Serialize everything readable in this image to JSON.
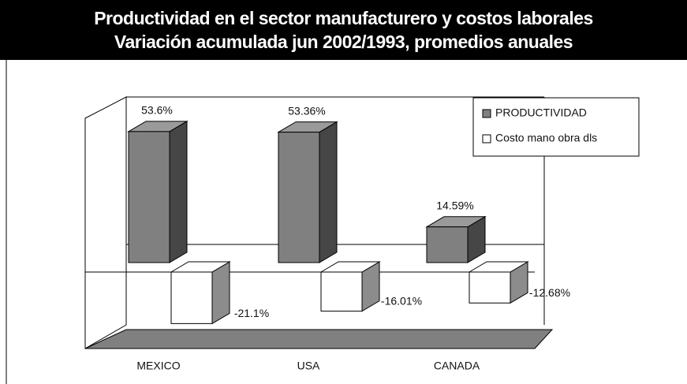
{
  "chart_data": {
    "type": "bar3d",
    "title": "Productividad en el sector manufacturero y costos laborales",
    "subtitle": "Variación acumulada jun 2002/1993, promedios anuales",
    "categories": [
      "MEXICO",
      "USA",
      "CANADA"
    ],
    "series": [
      {
        "name": "PRODUCTIVIDAD",
        "color": "#808080",
        "values": [
          53.6,
          53.36,
          14.59
        ],
        "value_labels": [
          "53.6%",
          "53.36%",
          "14.59%"
        ]
      },
      {
        "name": "Costo mano obra dls",
        "color": "#ffffff",
        "values": [
          -21.1,
          -16.01,
          -12.68
        ],
        "value_labels": [
          "-21.1%",
          "-16.01%",
          "-12.68%"
        ]
      }
    ],
    "legend": "top-right"
  }
}
